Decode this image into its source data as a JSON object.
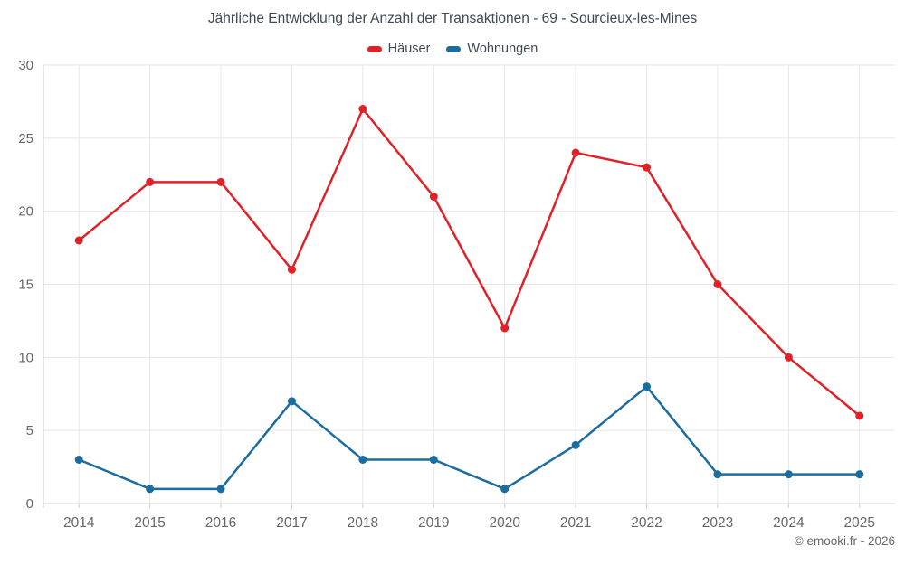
{
  "header": {
    "title": "Jährliche Entwicklung der Anzahl der Transaktionen - 69 - Sourcieux-les-Mines"
  },
  "footer": {
    "copyright": "© emooki.fr - 2026"
  },
  "chart_data": {
    "type": "line",
    "title": "Jährliche Entwicklung der Anzahl der Transaktionen - 69 - Sourcieux-les-Mines",
    "categories": [
      "2014",
      "2015",
      "2016",
      "2017",
      "2018",
      "2019",
      "2020",
      "2021",
      "2022",
      "2023",
      "2024",
      "2025"
    ],
    "series": [
      {
        "name": "Häuser",
        "color": "#e02128",
        "values": [
          18,
          22,
          22,
          16,
          27,
          21,
          12,
          24,
          23,
          15,
          10,
          6
        ]
      },
      {
        "name": "Wohnungen",
        "color": "#1a6d9e",
        "values": [
          3,
          1,
          1,
          7,
          3,
          3,
          1,
          4,
          8,
          2,
          2,
          2
        ]
      }
    ],
    "xlabel": "",
    "ylabel": "",
    "ylim": [
      0,
      30
    ],
    "yticks": [
      0,
      5,
      10,
      15,
      20,
      25,
      30
    ],
    "grid": true,
    "grid_color": "#e6e6e6",
    "axis_color": "#cccccc",
    "marker": "circle",
    "legend_position": "top"
  }
}
